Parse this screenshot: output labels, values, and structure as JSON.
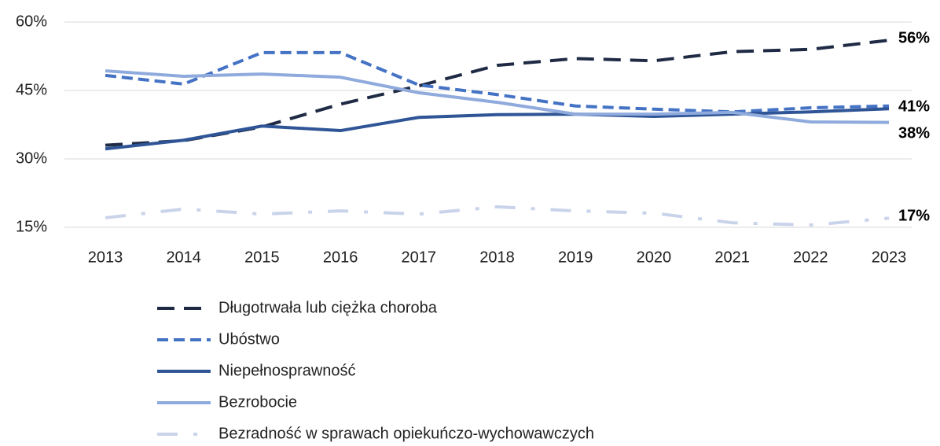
{
  "chart_data": {
    "type": "line",
    "categories": [
      "2013",
      "2014",
      "2015",
      "2016",
      "2017",
      "2018",
      "2019",
      "2020",
      "2021",
      "2022",
      "2023"
    ],
    "series": [
      {
        "name": "Długotrwała lub ciężka choroba",
        "color": "#1f2a44",
        "dash": "long-dash",
        "values": [
          33,
          34,
          37,
          42,
          46,
          50.5,
          52,
          51.5,
          53.5,
          54,
          56
        ],
        "value_labels": [
          null,
          null,
          null,
          null,
          null,
          null,
          null,
          null,
          null,
          null,
          "56%"
        ]
      },
      {
        "name": "Ubóstwo",
        "color": "#4472c4",
        "dash": "dash",
        "values": [
          48.3,
          46.4,
          53.3,
          53.3,
          46.2,
          44.1,
          41.6,
          40.9,
          40.3,
          41.2,
          41.6
        ]
      },
      {
        "name": "Niepełnosprawność",
        "color": "#2f5597",
        "dash": "solid",
        "values": [
          32.2,
          34.1,
          37.2,
          36.2,
          39.1,
          39.7,
          39.8,
          39.3,
          39.8,
          40.3,
          41
        ],
        "value_labels": [
          null,
          null,
          null,
          null,
          null,
          null,
          null,
          null,
          null,
          null,
          "41%"
        ]
      },
      {
        "name": "Bezrobocie",
        "color": "#8faadc",
        "dash": "solid",
        "values": [
          49.3,
          48.1,
          48.6,
          47.9,
          44.5,
          42.4,
          39.8,
          39.8,
          40.2,
          38.1,
          38
        ],
        "value_labels": [
          null,
          null,
          null,
          null,
          null,
          null,
          null,
          null,
          null,
          null,
          "38%"
        ]
      },
      {
        "name": "Bezradność w sprawach opiekuńczo-wychowawczych",
        "color": "#c9d3ea",
        "dash": "dash-dot",
        "values": [
          17.1,
          19,
          17.9,
          18.6,
          17.9,
          19.5,
          18.6,
          18.1,
          16,
          15.5,
          17
        ],
        "value_labels": [
          null,
          null,
          null,
          null,
          null,
          null,
          null,
          null,
          null,
          null,
          "17%"
        ]
      }
    ],
    "ylim": [
      15,
      60
    ],
    "yticks": [
      {
        "value": 15,
        "label": "15%"
      },
      {
        "value": 30,
        "label": "30%"
      },
      {
        "value": 45,
        "label": "45%"
      },
      {
        "value": 60,
        "label": "60%"
      }
    ],
    "grid": true,
    "legend": "bottom"
  }
}
